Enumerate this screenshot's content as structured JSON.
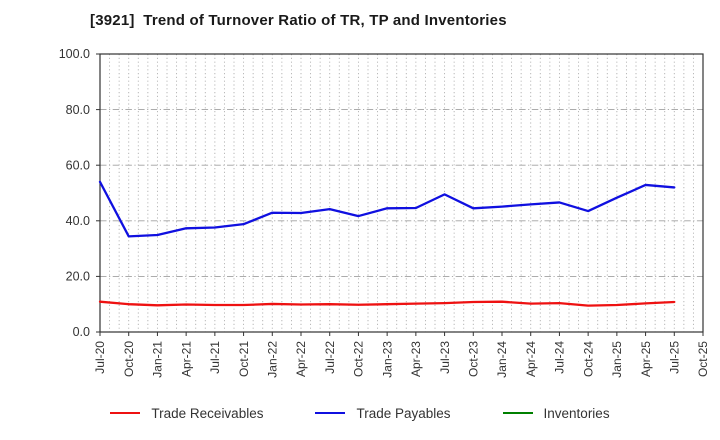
{
  "title": "[3921]  Trend of Turnover Ratio of TR, TP and Inventories",
  "chart_data": {
    "type": "line",
    "title": "[3921]  Trend of Turnover Ratio of TR, TP and Inventories",
    "x_labels": [
      "Jul-20",
      "Oct-20",
      "Jan-21",
      "Apr-21",
      "Jul-21",
      "Oct-21",
      "Jan-22",
      "Apr-22",
      "Jul-22",
      "Oct-22",
      "Jan-23",
      "Apr-23",
      "Jul-23",
      "Oct-23",
      "Jan-24",
      "Apr-24",
      "Jul-24",
      "Oct-24",
      "Jan-25",
      "Apr-25",
      "Jul-25",
      "Oct-25"
    ],
    "y_tick_labels": [
      "0.0",
      "20.0",
      "40.0",
      "60.0",
      "80.0",
      "100.0"
    ],
    "ylim": [
      0,
      100
    ],
    "grid": {
      "vertical": "monthly dotted",
      "horizontal": "dashed every 20"
    },
    "legend_position": "bottom center",
    "series": [
      {
        "name": "Trade Receivables",
        "color": "#ee1111",
        "values": [
          10.9,
          10.0,
          9.6,
          9.9,
          9.7,
          9.7,
          10.1,
          9.9,
          10.0,
          9.8,
          10.0,
          10.2,
          10.4,
          10.8,
          10.9,
          10.2,
          10.4,
          9.5,
          9.7,
          10.3,
          10.8
        ]
      },
      {
        "name": "Trade Payables",
        "color": "#1010e0",
        "values": [
          54.0,
          34.4,
          34.9,
          37.3,
          37.6,
          38.8,
          42.9,
          42.8,
          44.2,
          41.7,
          44.5,
          44.6,
          49.5,
          44.5,
          45.1,
          45.9,
          46.6,
          43.5,
          48.3,
          52.9,
          52.0
        ]
      },
      {
        "name": "Inventories",
        "color": "#008000",
        "values": []
      }
    ]
  },
  "style": {
    "spine_color": "#333333",
    "grid_color_vertical": "#b0b0b0",
    "grid_color_horizontal": "#a0a0a0",
    "tick_label_color": "#333333"
  }
}
